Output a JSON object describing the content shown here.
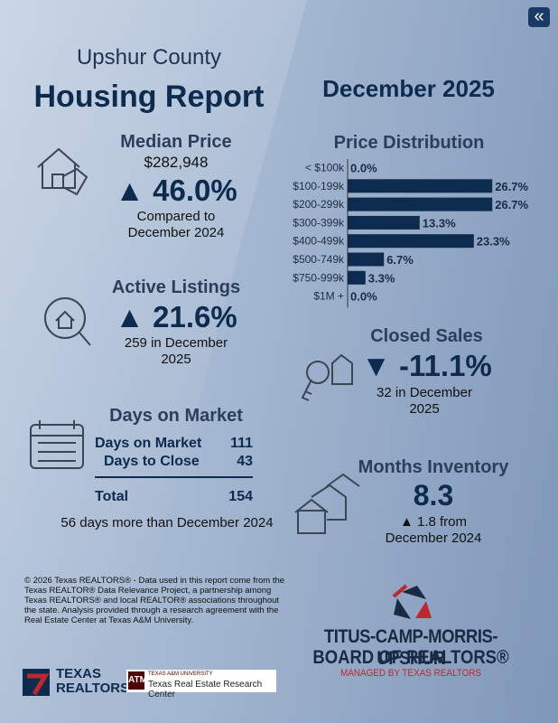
{
  "header": {
    "county": "Upshur County",
    "title": "Housing Report",
    "period": "December 2025"
  },
  "median_price": {
    "title": "Median Price",
    "value": "$282,948",
    "change": "▲ 46.0%",
    "compare": "Compared to December 2024"
  },
  "price_distribution": {
    "title": "Price Distribution",
    "categories": [
      "< $100k",
      "$100-199k",
      "$200-299k",
      "$300-399k",
      "$400-499k",
      "$500-749k",
      "$750-999k",
      "$1M +"
    ],
    "values": [
      0,
      26.7,
      26.7,
      13.3,
      23.3,
      6.7,
      3.3,
      0
    ],
    "value_labels": [
      "0.0%",
      "26.7%",
      "26.7%",
      "13.3%",
      "23.3%",
      "6.7%",
      "3.3%",
      "0.0%"
    ],
    "color": "#0d2a4f"
  },
  "active_listings": {
    "title": "Active Listings",
    "change": "▲ 21.6%",
    "detail": "259 in December 2025"
  },
  "closed_sales": {
    "title": "Closed Sales",
    "change": "▼ -11.1%",
    "detail": "32 in December 2025"
  },
  "days_on_market": {
    "title": "Days on Market",
    "rows": [
      [
        "Days on Market",
        111
      ],
      [
        "Days to Close",
        43
      ]
    ],
    "total": [
      "Total",
      154
    ],
    "note": "56 days more than December 2024"
  },
  "months_inventory": {
    "title": "Months Inventory",
    "value": "8.3",
    "change": "▲ 1.8 from December 2024"
  },
  "footer": {
    "disclaimer": "© 2026 Texas REALTORS® - Data used in this report come from the Texas REALTOR® Data Relevance Project, a partnership among Texas REALTORS® and local REALTOR® associations throughout the state. Analysis provided through a research agreement with the Real Estate Center at Texas A&M University.",
    "board_line1": "TITUS-CAMP-MORRIS-UPSHUR",
    "board_line2": "BOARD OF REALTORS®",
    "board_tagline": "MANAGED BY TEXAS REALTORS",
    "tr_line1": "TEXAS",
    "tr_line2": "REALTORS",
    "tamu_small": "TEXAS A&M UNIVERSITY",
    "tamu_center": "Texas Real Estate Research Center"
  }
}
